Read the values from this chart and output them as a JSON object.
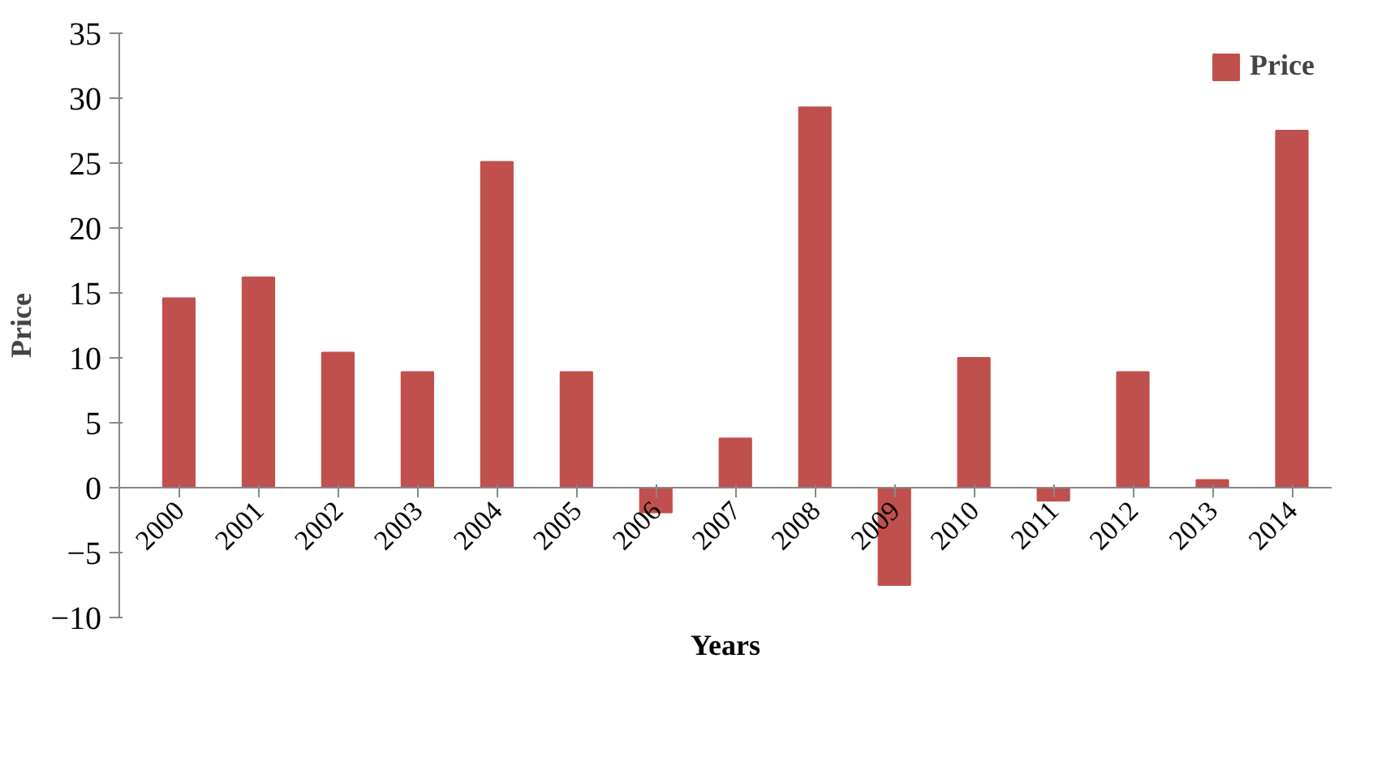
{
  "chart_data": {
    "type": "bar",
    "xlabel": "Years",
    "ylabel": "Price",
    "categories": [
      "2000",
      "2001",
      "2002",
      "2003",
      "2004",
      "2005",
      "2006",
      "2007",
      "2008",
      "2009",
      "2010",
      "2011",
      "2012",
      "2013",
      "2014"
    ],
    "series": [
      {
        "name": "Price",
        "color": "#c0504d",
        "values": [
          14.6,
          16.2,
          10.4,
          8.9,
          25.1,
          8.9,
          -1.9,
          3.8,
          29.3,
          -7.5,
          10.0,
          -1.0,
          8.9,
          0.6,
          27.5
        ]
      }
    ],
    "ylim": [
      -10,
      35
    ],
    "yticks": [
      -10,
      -5,
      0,
      5,
      10,
      15,
      20,
      25,
      30,
      35
    ],
    "grid": false,
    "legend": "top right"
  }
}
